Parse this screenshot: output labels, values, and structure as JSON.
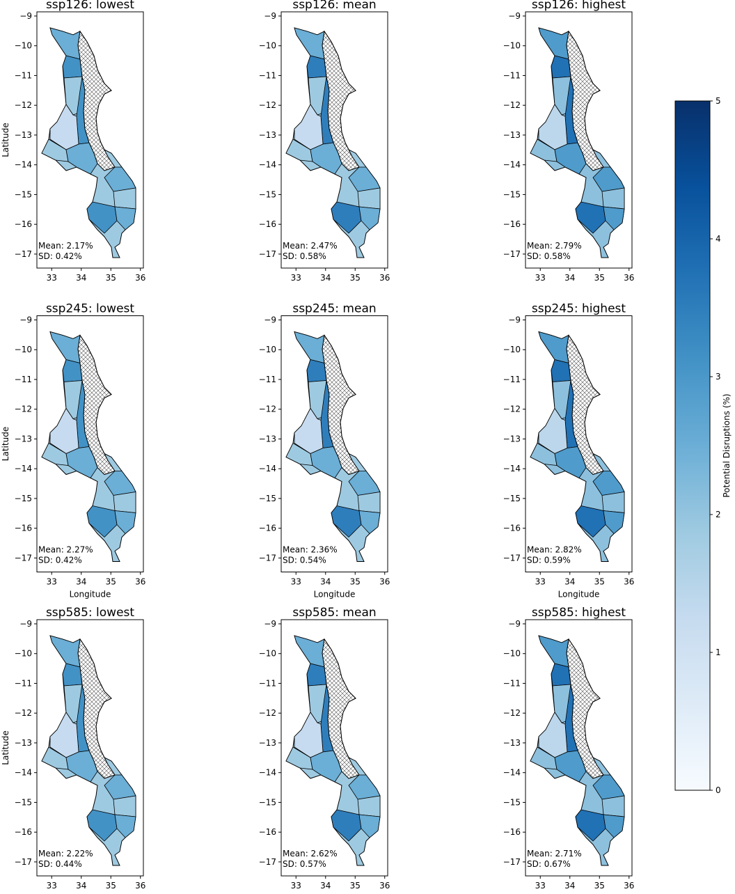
{
  "chart_data": [
    {
      "type": "map",
      "title": "ssp126: lowest",
      "annotations": [
        "Mean: 2.17%",
        "SD: 0.42%"
      ],
      "ylabel": "Latitude",
      "xlim": [
        32.5,
        36.1
      ],
      "ylim": [
        -17.47,
        -8.86
      ],
      "xticks": [
        33,
        34,
        35,
        36
      ],
      "yticks": [
        {
          "value": -9,
          "label": "−9"
        },
        {
          "value": -10,
          "label": "−10"
        },
        {
          "value": -11,
          "label": "−11"
        },
        {
          "value": -12,
          "label": "−12"
        },
        {
          "value": -13,
          "label": "−13"
        },
        {
          "value": -14,
          "label": "−14"
        },
        {
          "value": -15,
          "label": "−15"
        },
        {
          "value": -16,
          "label": "−16"
        },
        {
          "value": -17,
          "label": "−17"
        }
      ]
    },
    {
      "type": "map",
      "title": "ssp126: mean",
      "annotations": [
        "Mean: 2.47%",
        "SD: 0.58%"
      ],
      "xlim": [
        32.5,
        36.1
      ],
      "ylim": [
        -17.47,
        -8.86
      ],
      "xticks": [
        33,
        34,
        35,
        36
      ],
      "yticks": [
        {
          "value": -9,
          "label": "−9"
        },
        {
          "value": -10,
          "label": "−10"
        },
        {
          "value": -11,
          "label": "−11"
        },
        {
          "value": -12,
          "label": "−12"
        },
        {
          "value": -13,
          "label": "−13"
        },
        {
          "value": -14,
          "label": "−14"
        },
        {
          "value": -15,
          "label": "−15"
        },
        {
          "value": -16,
          "label": "−16"
        },
        {
          "value": -17,
          "label": "−17"
        }
      ]
    },
    {
      "type": "map",
      "title": "ssp126: highest",
      "annotations": [
        "Mean: 2.79%",
        "SD: 0.58%"
      ],
      "xlim": [
        32.5,
        36.1
      ],
      "ylim": [
        -17.47,
        -8.86
      ],
      "xticks": [
        33,
        34,
        35,
        36
      ],
      "yticks": [
        {
          "value": -9,
          "label": "−9"
        },
        {
          "value": -10,
          "label": "−10"
        },
        {
          "value": -11,
          "label": "−11"
        },
        {
          "value": -12,
          "label": "−12"
        },
        {
          "value": -13,
          "label": "−13"
        },
        {
          "value": -14,
          "label": "−14"
        },
        {
          "value": -15,
          "label": "−15"
        },
        {
          "value": -16,
          "label": "−16"
        },
        {
          "value": -17,
          "label": "−17"
        }
      ]
    },
    {
      "type": "map",
      "title": "ssp245: lowest",
      "annotations": [
        "Mean: 2.27%",
        "SD: 0.42%"
      ],
      "xlabel": "Longitude",
      "ylabel": "Latitude",
      "xlim": [
        32.5,
        36.1
      ],
      "ylim": [
        -17.47,
        -8.86
      ],
      "xticks": [
        33,
        34,
        35,
        36
      ],
      "yticks": [
        {
          "value": -9,
          "label": "−9"
        },
        {
          "value": -10,
          "label": "−10"
        },
        {
          "value": -11,
          "label": "−11"
        },
        {
          "value": -12,
          "label": "−12"
        },
        {
          "value": -13,
          "label": "−13"
        },
        {
          "value": -14,
          "label": "−14"
        },
        {
          "value": -15,
          "label": "−15"
        },
        {
          "value": -16,
          "label": "−16"
        },
        {
          "value": -17,
          "label": "−17"
        }
      ]
    },
    {
      "type": "map",
      "title": "ssp245: mean",
      "annotations": [
        "Mean: 2.36%",
        "SD: 0.54%"
      ],
      "xlabel": "Longitude",
      "xlim": [
        32.5,
        36.1
      ],
      "ylim": [
        -17.47,
        -8.86
      ],
      "xticks": [
        33,
        34,
        35,
        36
      ],
      "yticks": [
        {
          "value": -9,
          "label": "−9"
        },
        {
          "value": -10,
          "label": "−10"
        },
        {
          "value": -11,
          "label": "−11"
        },
        {
          "value": -12,
          "label": "−12"
        },
        {
          "value": -13,
          "label": "−13"
        },
        {
          "value": -14,
          "label": "−14"
        },
        {
          "value": -15,
          "label": "−15"
        },
        {
          "value": -16,
          "label": "−16"
        },
        {
          "value": -17,
          "label": "−17"
        }
      ]
    },
    {
      "type": "map",
      "title": "ssp245: highest",
      "annotations": [
        "Mean: 2.82%",
        "SD: 0.59%"
      ],
      "xlabel": "Longitude",
      "xlim": [
        32.5,
        36.1
      ],
      "ylim": [
        -17.47,
        -8.86
      ],
      "xticks": [
        33,
        34,
        35,
        36
      ],
      "yticks": [
        {
          "value": -9,
          "label": "−9"
        },
        {
          "value": -10,
          "label": "−10"
        },
        {
          "value": -11,
          "label": "−11"
        },
        {
          "value": -12,
          "label": "−12"
        },
        {
          "value": -13,
          "label": "−13"
        },
        {
          "value": -14,
          "label": "−14"
        },
        {
          "value": -15,
          "label": "−15"
        },
        {
          "value": -16,
          "label": "−16"
        },
        {
          "value": -17,
          "label": "−17"
        }
      ]
    },
    {
      "type": "map",
      "title": "ssp585: lowest",
      "annotations": [
        "Mean: 2.22%",
        "SD: 0.44%"
      ],
      "ylabel": "Latitude",
      "xlim": [
        32.5,
        36.1
      ],
      "ylim": [
        -17.47,
        -8.86
      ],
      "xticks": [
        33,
        34,
        35,
        36
      ],
      "yticks": [
        {
          "value": -9,
          "label": "−9"
        },
        {
          "value": -10,
          "label": "−10"
        },
        {
          "value": -11,
          "label": "−11"
        },
        {
          "value": -12,
          "label": "−12"
        },
        {
          "value": -13,
          "label": "−13"
        },
        {
          "value": -14,
          "label": "−14"
        },
        {
          "value": -15,
          "label": "−15"
        },
        {
          "value": -16,
          "label": "−16"
        },
        {
          "value": -17,
          "label": "−17"
        }
      ]
    },
    {
      "type": "map",
      "title": "ssp585: mean",
      "annotations": [
        "Mean: 2.62%",
        "SD: 0.57%"
      ],
      "xlim": [
        32.5,
        36.1
      ],
      "ylim": [
        -17.47,
        -8.86
      ],
      "xticks": [
        33,
        34,
        35,
        36
      ],
      "yticks": [
        {
          "value": -9,
          "label": "−9"
        },
        {
          "value": -10,
          "label": "−10"
        },
        {
          "value": -11,
          "label": "−11"
        },
        {
          "value": -12,
          "label": "−12"
        },
        {
          "value": -13,
          "label": "−13"
        },
        {
          "value": -14,
          "label": "−14"
        },
        {
          "value": -15,
          "label": "−15"
        },
        {
          "value": -16,
          "label": "−16"
        },
        {
          "value": -17,
          "label": "−17"
        }
      ]
    },
    {
      "type": "map",
      "title": "ssp585: highest",
      "annotations": [
        "Mean: 2.71%",
        "SD: 0.67%"
      ],
      "xlim": [
        32.5,
        36.1
      ],
      "ylim": [
        -17.47,
        -8.86
      ],
      "xticks": [
        33,
        34,
        35,
        36
      ],
      "yticks": [
        {
          "value": -9,
          "label": "−9"
        },
        {
          "value": -10,
          "label": "−10"
        },
        {
          "value": -11,
          "label": "−11"
        },
        {
          "value": -12,
          "label": "−12"
        },
        {
          "value": -13,
          "label": "−13"
        },
        {
          "value": -14,
          "label": "−14"
        },
        {
          "value": -15,
          "label": "−15"
        },
        {
          "value": -16,
          "label": "−16"
        },
        {
          "value": -17,
          "label": "−17"
        }
      ]
    },
    {
      "type": "colorbar",
      "label": "Potential Disruptions (%)",
      "ylim": [
        0,
        5
      ],
      "yticks": [
        0,
        1,
        2,
        3,
        4,
        5
      ],
      "colors": [
        "#f7fbff",
        "#08306b"
      ]
    }
  ]
}
